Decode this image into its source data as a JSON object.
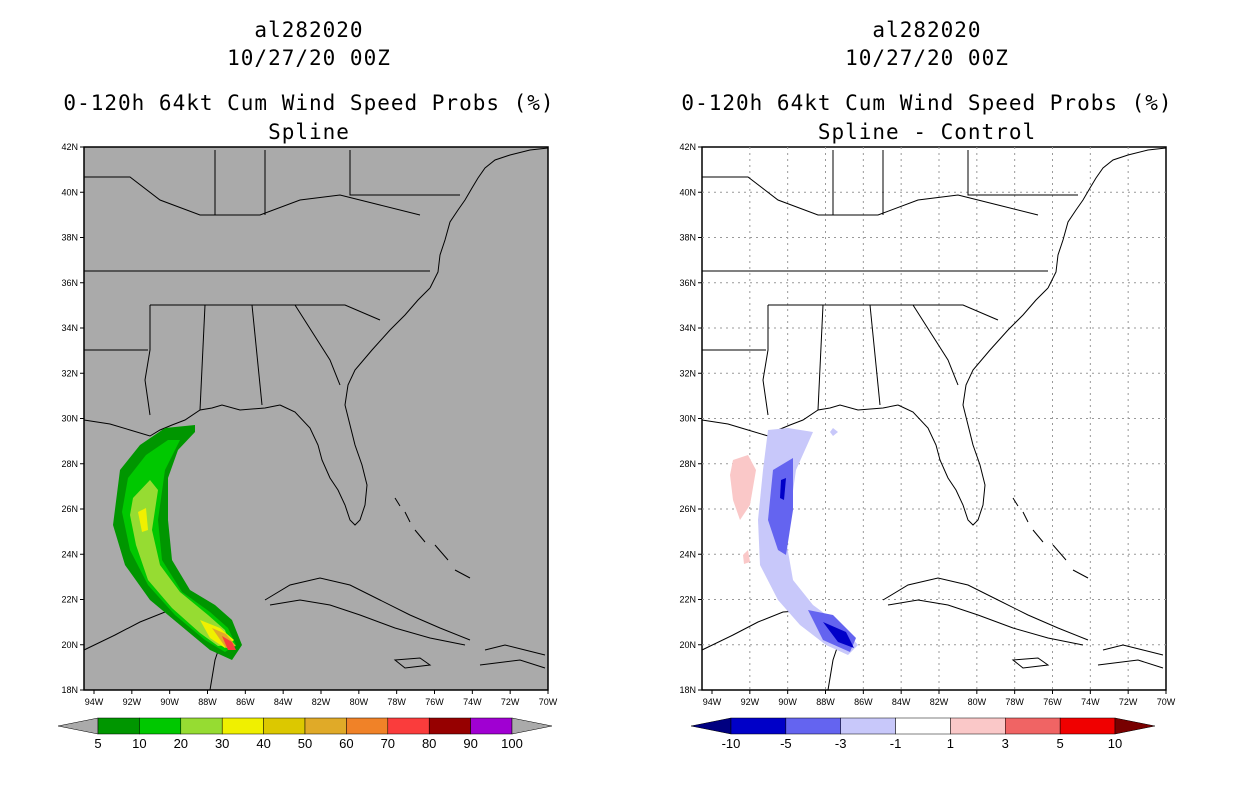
{
  "panels": [
    {
      "id": "left",
      "storm_id": "al282020",
      "datetime": "10/27/20 00Z",
      "product": "0-120h 64kt Cum Wind Speed Probs (%)",
      "subtitle": "Spline",
      "background_color": "#aaaaaa",
      "colorbar": {
        "labels": [
          "5",
          "10",
          "20",
          "30",
          "40",
          "50",
          "60",
          "70",
          "80",
          "90",
          "100"
        ],
        "colors": [
          "#009600",
          "#00c800",
          "#96dc32",
          "#f0f000",
          "#dcc800",
          "#e0aa28",
          "#f08228",
          "#fa3c3c",
          "#960000",
          "#a000d2"
        ]
      }
    },
    {
      "id": "right",
      "storm_id": "al282020",
      "datetime": "10/27/20 00Z",
      "product": "0-120h 64kt Cum Wind Speed Probs (%)",
      "subtitle": "Spline - Control",
      "background_color": "#ffffff",
      "colorbar": {
        "labels": [
          "-10",
          "-5",
          "-3",
          "-1",
          "1",
          "3",
          "5",
          "10"
        ],
        "colors": [
          "#0000c8",
          "#6464f0",
          "#c8c8fa",
          "#ffffff",
          "#fac8c8",
          "#f06464",
          "#f00000"
        ]
      }
    }
  ],
  "map": {
    "lat_labels": [
      "42N",
      "40N",
      "38N",
      "36N",
      "34N",
      "32N",
      "30N",
      "28N",
      "26N",
      "24N",
      "22N",
      "20N",
      "18N"
    ],
    "lon_labels": [
      "94W",
      "92W",
      "90W",
      "88W",
      "86W",
      "84W",
      "82W",
      "80W",
      "78W",
      "76W",
      "74W",
      "72W",
      "70W"
    ]
  }
}
